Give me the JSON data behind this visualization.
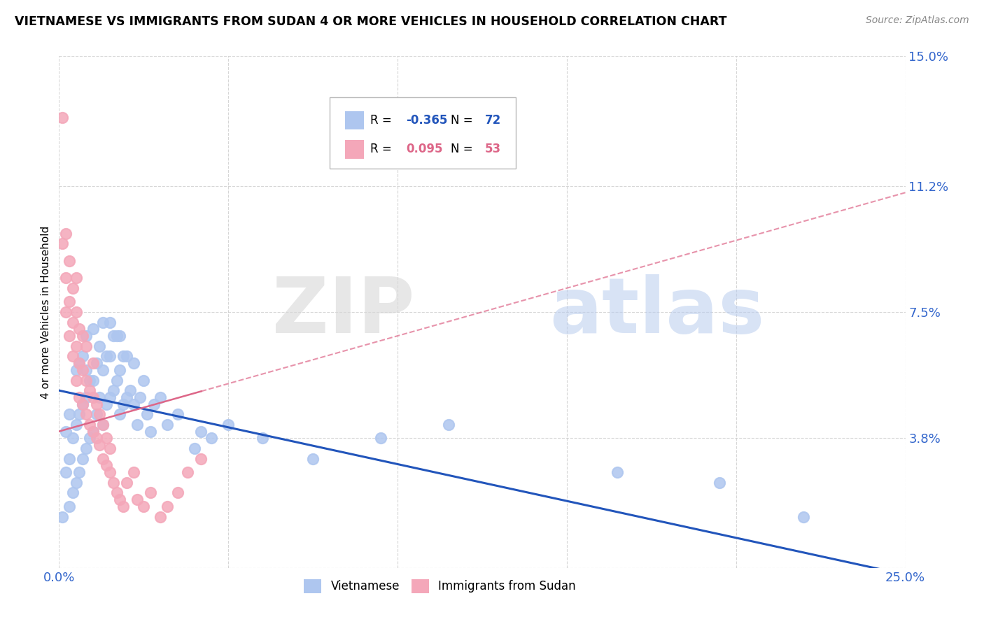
{
  "title": "VIETNAMESE VS IMMIGRANTS FROM SUDAN 4 OR MORE VEHICLES IN HOUSEHOLD CORRELATION CHART",
  "source": "Source: ZipAtlas.com",
  "ylabel": "4 or more Vehicles in Household",
  "xlim": [
    0.0,
    0.25
  ],
  "ylim": [
    0.0,
    0.15
  ],
  "xticks": [
    0.0,
    0.05,
    0.1,
    0.15,
    0.2,
    0.25
  ],
  "xticklabels": [
    "0.0%",
    "",
    "",
    "",
    "",
    "25.0%"
  ],
  "ytick_positions": [
    0.0,
    0.038,
    0.075,
    0.112,
    0.15
  ],
  "ytick_labels": [
    "",
    "3.8%",
    "7.5%",
    "11.2%",
    "15.0%"
  ],
  "legend_r_n": [
    {
      "R": "-0.365",
      "N": "72"
    },
    {
      "R": "0.095",
      "N": "53"
    }
  ],
  "blue_color": "#aec6ef",
  "pink_color": "#f4a7b9",
  "blue_line_color": "#2255bb",
  "pink_line_color": "#dd6688",
  "blue_scatter_x": [
    0.001,
    0.002,
    0.002,
    0.003,
    0.003,
    0.003,
    0.004,
    0.004,
    0.005,
    0.005,
    0.005,
    0.006,
    0.006,
    0.006,
    0.007,
    0.007,
    0.007,
    0.008,
    0.008,
    0.008,
    0.008,
    0.009,
    0.009,
    0.01,
    0.01,
    0.01,
    0.011,
    0.011,
    0.012,
    0.012,
    0.013,
    0.013,
    0.013,
    0.014,
    0.014,
    0.015,
    0.015,
    0.015,
    0.016,
    0.016,
    0.017,
    0.017,
    0.018,
    0.018,
    0.018,
    0.019,
    0.019,
    0.02,
    0.02,
    0.021,
    0.022,
    0.022,
    0.023,
    0.024,
    0.025,
    0.026,
    0.027,
    0.028,
    0.03,
    0.032,
    0.035,
    0.04,
    0.042,
    0.045,
    0.05,
    0.06,
    0.075,
    0.095,
    0.115,
    0.165,
    0.195,
    0.22
  ],
  "blue_scatter_y": [
    0.015,
    0.028,
    0.04,
    0.018,
    0.032,
    0.045,
    0.022,
    0.038,
    0.025,
    0.042,
    0.058,
    0.028,
    0.045,
    0.06,
    0.032,
    0.048,
    0.062,
    0.035,
    0.05,
    0.058,
    0.068,
    0.038,
    0.055,
    0.04,
    0.055,
    0.07,
    0.045,
    0.06,
    0.05,
    0.065,
    0.042,
    0.058,
    0.072,
    0.048,
    0.062,
    0.05,
    0.062,
    0.072,
    0.052,
    0.068,
    0.055,
    0.068,
    0.045,
    0.058,
    0.068,
    0.048,
    0.062,
    0.05,
    0.062,
    0.052,
    0.048,
    0.06,
    0.042,
    0.05,
    0.055,
    0.045,
    0.04,
    0.048,
    0.05,
    0.042,
    0.045,
    0.035,
    0.04,
    0.038,
    0.042,
    0.038,
    0.032,
    0.038,
    0.042,
    0.028,
    0.025,
    0.015
  ],
  "pink_scatter_x": [
    0.001,
    0.001,
    0.002,
    0.002,
    0.002,
    0.003,
    0.003,
    0.003,
    0.004,
    0.004,
    0.004,
    0.005,
    0.005,
    0.005,
    0.005,
    0.006,
    0.006,
    0.006,
    0.007,
    0.007,
    0.007,
    0.008,
    0.008,
    0.008,
    0.009,
    0.009,
    0.01,
    0.01,
    0.01,
    0.011,
    0.011,
    0.012,
    0.012,
    0.013,
    0.013,
    0.014,
    0.014,
    0.015,
    0.015,
    0.016,
    0.017,
    0.018,
    0.019,
    0.02,
    0.022,
    0.023,
    0.025,
    0.027,
    0.03,
    0.032,
    0.035,
    0.038,
    0.042
  ],
  "pink_scatter_y": [
    0.132,
    0.095,
    0.075,
    0.085,
    0.098,
    0.068,
    0.078,
    0.09,
    0.062,
    0.072,
    0.082,
    0.055,
    0.065,
    0.075,
    0.085,
    0.05,
    0.06,
    0.07,
    0.048,
    0.058,
    0.068,
    0.045,
    0.055,
    0.065,
    0.042,
    0.052,
    0.04,
    0.05,
    0.06,
    0.038,
    0.048,
    0.036,
    0.045,
    0.032,
    0.042,
    0.03,
    0.038,
    0.028,
    0.035,
    0.025,
    0.022,
    0.02,
    0.018,
    0.025,
    0.028,
    0.02,
    0.018,
    0.022,
    0.015,
    0.018,
    0.022,
    0.028,
    0.032
  ],
  "blue_line_x0": 0.0,
  "blue_line_y0": 0.052,
  "blue_line_x1": 0.25,
  "blue_line_y1": -0.002,
  "pink_line_x0": 0.0,
  "pink_line_y0": 0.04,
  "pink_line_x1": 0.25,
  "pink_line_y1": 0.11
}
